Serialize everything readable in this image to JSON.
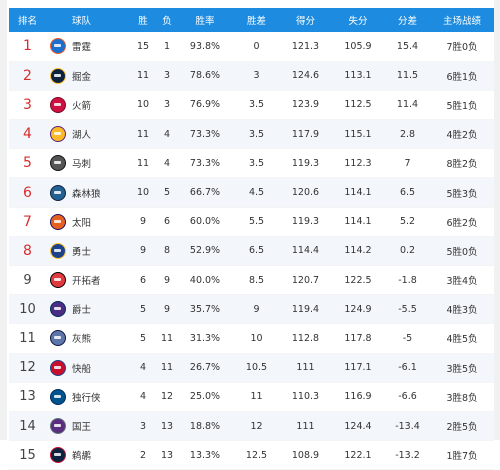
{
  "headers": [
    "排名",
    "球队",
    "胜",
    "负",
    "胜率",
    "胜差",
    "得分",
    "失分",
    "分差",
    "主场战绩"
  ],
  "rows": [
    {
      "rank": "1",
      "team": "雷霆",
      "w": "15",
      "l": "1",
      "pct": "93.8%",
      "gb": "0",
      "pf": "121.3",
      "pa": "105.9",
      "diff": "15.4",
      "home": "7胜0负",
      "logo": {
        "fill": "#1a6fcf",
        "ring": "#f05a28",
        "icon": "thunder-logo-icon"
      }
    },
    {
      "rank": "2",
      "team": "掘金",
      "w": "11",
      "l": "3",
      "pct": "78.6%",
      "gb": "3",
      "pf": "124.6",
      "pa": "113.1",
      "diff": "11.5",
      "home": "6胜1负",
      "logo": {
        "fill": "#0e2240",
        "ring": "#fec524",
        "icon": "nuggets-logo-icon"
      }
    },
    {
      "rank": "3",
      "team": "火箭",
      "w": "10",
      "l": "3",
      "pct": "76.9%",
      "gb": "3.5",
      "pf": "123.9",
      "pa": "112.5",
      "diff": "11.4",
      "home": "5胜1负",
      "logo": {
        "fill": "#ce1141",
        "ring": "#7a0a22",
        "icon": "rockets-logo-icon"
      }
    },
    {
      "rank": "4",
      "team": "湖人",
      "w": "11",
      "l": "4",
      "pct": "73.3%",
      "gb": "3.5",
      "pf": "117.9",
      "pa": "115.1",
      "diff": "2.8",
      "home": "4胜2负",
      "logo": {
        "fill": "#fdb927",
        "ring": "#552583",
        "icon": "lakers-logo-icon"
      }
    },
    {
      "rank": "5",
      "team": "马刺",
      "w": "11",
      "l": "4",
      "pct": "73.3%",
      "gb": "3.5",
      "pf": "119.3",
      "pa": "112.3",
      "diff": "7",
      "home": "8胜2负",
      "logo": {
        "fill": "#555555",
        "ring": "#111111",
        "icon": "spurs-logo-icon"
      }
    },
    {
      "rank": "6",
      "team": "森林狼",
      "w": "10",
      "l": "5",
      "pct": "66.7%",
      "gb": "4.5",
      "pf": "120.6",
      "pa": "114.1",
      "diff": "6.5",
      "home": "5胜3负",
      "logo": {
        "fill": "#236192",
        "ring": "#0c2340",
        "icon": "timberwolves-logo-icon"
      }
    },
    {
      "rank": "7",
      "team": "太阳",
      "w": "9",
      "l": "6",
      "pct": "60.0%",
      "gb": "5.5",
      "pf": "119.3",
      "pa": "114.1",
      "diff": "5.2",
      "home": "6胜2负",
      "logo": {
        "fill": "#e56020",
        "ring": "#1d1160",
        "icon": "suns-logo-icon"
      }
    },
    {
      "rank": "8",
      "team": "勇士",
      "w": "9",
      "l": "8",
      "pct": "52.9%",
      "gb": "6.5",
      "pf": "114.4",
      "pa": "114.2",
      "diff": "0.2",
      "home": "5胜0负",
      "logo": {
        "fill": "#1d428a",
        "ring": "#ffc72c",
        "icon": "warriors-logo-icon"
      }
    },
    {
      "rank": "9",
      "team": "开拓者",
      "w": "6",
      "l": "9",
      "pct": "40.0%",
      "gb": "8.5",
      "pf": "120.7",
      "pa": "122.5",
      "diff": "-1.8",
      "home": "3胜4负",
      "logo": {
        "fill": "#e03a3e",
        "ring": "#000000",
        "icon": "blazers-logo-icon"
      }
    },
    {
      "rank": "10",
      "team": "爵士",
      "w": "5",
      "l": "9",
      "pct": "35.7%",
      "gb": "9",
      "pf": "119.4",
      "pa": "124.9",
      "diff": "-5.5",
      "home": "4胜3负",
      "logo": {
        "fill": "#4b2e83",
        "ring": "#002b5c",
        "icon": "jazz-logo-icon"
      }
    },
    {
      "rank": "11",
      "team": "灰熊",
      "w": "5",
      "l": "11",
      "pct": "31.3%",
      "gb": "10",
      "pf": "112.8",
      "pa": "117.8",
      "diff": "-5",
      "home": "4胜5负",
      "logo": {
        "fill": "#5d76a9",
        "ring": "#12173f",
        "icon": "grizzlies-logo-icon"
      }
    },
    {
      "rank": "12",
      "team": "快船",
      "w": "4",
      "l": "11",
      "pct": "26.7%",
      "gb": "10.5",
      "pf": "111",
      "pa": "117.1",
      "diff": "-6.1",
      "home": "3胜5负",
      "logo": {
        "fill": "#c8102e",
        "ring": "#1d428a",
        "icon": "clippers-logo-icon"
      }
    },
    {
      "rank": "13",
      "team": "独行侠",
      "w": "4",
      "l": "12",
      "pct": "25.0%",
      "gb": "11",
      "pf": "110.3",
      "pa": "116.9",
      "diff": "-6.6",
      "home": "3胜8负",
      "logo": {
        "fill": "#00538c",
        "ring": "#002b5e",
        "icon": "mavericks-logo-icon"
      }
    },
    {
      "rank": "14",
      "team": "国王",
      "w": "3",
      "l": "13",
      "pct": "18.8%",
      "gb": "12",
      "pf": "111",
      "pa": "124.4",
      "diff": "-13.4",
      "home": "2胜5负",
      "logo": {
        "fill": "#5a2d81",
        "ring": "#63727a",
        "icon": "kings-logo-icon"
      }
    },
    {
      "rank": "15",
      "team": "鹈鹕",
      "w": "2",
      "l": "13",
      "pct": "13.3%",
      "gb": "12.5",
      "pf": "108.9",
      "pa": "122.1",
      "diff": "-13.2",
      "home": "1胜7负",
      "logo": {
        "fill": "#0c2340",
        "ring": "#c8102e",
        "icon": "pelicans-logo-icon"
      }
    }
  ]
}
